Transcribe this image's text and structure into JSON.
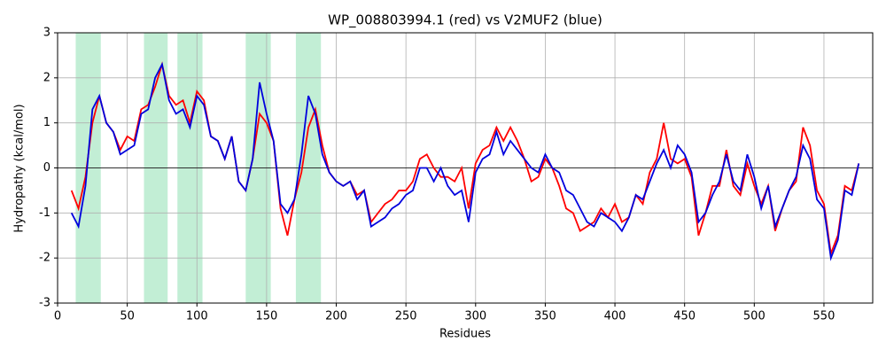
{
  "chart_data": {
    "type": "line",
    "title": "WP_008803994.1 (red) vs V2MUF2 (blue)",
    "x_label": "Residues",
    "y_label": "Hydropathy (kcal/mol)",
    "x": [
      10,
      15,
      20,
      25,
      30,
      35,
      40,
      45,
      50,
      55,
      60,
      65,
      70,
      75,
      80,
      85,
      90,
      95,
      100,
      105,
      110,
      115,
      120,
      125,
      130,
      135,
      140,
      145,
      150,
      155,
      160,
      165,
      170,
      175,
      180,
      185,
      190,
      195,
      200,
      205,
      210,
      215,
      220,
      225,
      230,
      235,
      240,
      245,
      250,
      255,
      260,
      265,
      270,
      275,
      280,
      285,
      290,
      295,
      300,
      305,
      310,
      315,
      320,
      325,
      330,
      335,
      340,
      345,
      350,
      355,
      360,
      365,
      370,
      375,
      380,
      385,
      390,
      395,
      400,
      405,
      410,
      415,
      420,
      425,
      430,
      435,
      440,
      445,
      450,
      455,
      460,
      465,
      470,
      475,
      480,
      485,
      490,
      495,
      500,
      505,
      510,
      515,
      520,
      525,
      530,
      535,
      540,
      545,
      550,
      555,
      560,
      565,
      570,
      575
    ],
    "series": [
      {
        "color": "#ff0000",
        "values": [
          -0.5,
          -0.9,
          -0.2,
          1.0,
          1.6,
          1.0,
          0.8,
          0.4,
          0.7,
          0.6,
          1.3,
          1.4,
          1.8,
          2.3,
          1.6,
          1.4,
          1.5,
          1.0,
          1.7,
          1.5,
          0.7,
          0.6,
          0.2,
          0.7,
          -0.3,
          -0.5,
          0.2,
          1.2,
          1.0,
          0.6,
          -0.9,
          -1.5,
          -0.7,
          -0.1,
          0.9,
          1.3,
          0.5,
          -0.1,
          -0.3,
          -0.4,
          -0.3,
          -0.6,
          -0.5,
          -1.2,
          -1.0,
          -0.8,
          -0.7,
          -0.5,
          -0.5,
          -0.3,
          0.2,
          0.3,
          0.0,
          -0.2,
          -0.2,
          -0.3,
          0.0,
          -0.9,
          0.1,
          0.4,
          0.5,
          0.9,
          0.6,
          0.9,
          0.6,
          0.2,
          -0.3,
          -0.2,
          0.2,
          0.0,
          -0.4,
          -0.9,
          -1.0,
          -1.4,
          -1.3,
          -1.2,
          -0.9,
          -1.1,
          -0.8,
          -1.2,
          -1.1,
          -0.6,
          -0.8,
          -0.1,
          0.2,
          1.0,
          0.2,
          0.1,
          0.2,
          -0.2,
          -1.5,
          -1.0,
          -0.4,
          -0.4,
          0.4,
          -0.4,
          -0.6,
          0.1,
          -0.4,
          -0.8,
          -0.4,
          -1.4,
          -0.9,
          -0.5,
          -0.3,
          0.9,
          0.5,
          -0.5,
          -0.8,
          -1.9,
          -1.5,
          -0.4,
          -0.5,
          0.1
        ]
      },
      {
        "color": "#0000dd",
        "values": [
          -1.0,
          -1.3,
          -0.4,
          1.3,
          1.6,
          1.0,
          0.8,
          0.3,
          0.4,
          0.5,
          1.2,
          1.3,
          2.0,
          2.3,
          1.5,
          1.2,
          1.3,
          0.9,
          1.6,
          1.4,
          0.7,
          0.6,
          0.2,
          0.7,
          -0.3,
          -0.5,
          0.2,
          1.9,
          1.2,
          0.6,
          -0.8,
          -1.0,
          -0.7,
          0.3,
          1.6,
          1.2,
          0.3,
          -0.1,
          -0.3,
          -0.4,
          -0.3,
          -0.7,
          -0.5,
          -1.3,
          -1.2,
          -1.1,
          -0.9,
          -0.8,
          -0.6,
          -0.5,
          0.0,
          0.0,
          -0.3,
          0.0,
          -0.4,
          -0.6,
          -0.5,
          -1.2,
          -0.1,
          0.2,
          0.3,
          0.8,
          0.3,
          0.6,
          0.4,
          0.2,
          0.0,
          -0.1,
          0.3,
          0.0,
          -0.1,
          -0.5,
          -0.6,
          -0.9,
          -1.2,
          -1.3,
          -1.0,
          -1.1,
          -1.2,
          -1.4,
          -1.1,
          -0.6,
          -0.7,
          -0.3,
          0.1,
          0.4,
          0.0,
          0.5,
          0.3,
          -0.1,
          -1.2,
          -1.0,
          -0.6,
          -0.3,
          0.3,
          -0.3,
          -0.5,
          0.3,
          -0.2,
          -0.9,
          -0.4,
          -1.3,
          -0.9,
          -0.5,
          -0.2,
          0.5,
          0.2,
          -0.7,
          -0.9,
          -2.0,
          -1.6,
          -0.5,
          -0.6,
          0.1
        ]
      }
    ],
    "highlights": [
      [
        13,
        31
      ],
      [
        62,
        79
      ],
      [
        86,
        104
      ],
      [
        135,
        153
      ],
      [
        171,
        189
      ]
    ],
    "highlight_color": "#c2eed5",
    "zero_line": 0,
    "xlim": [
      0,
      585
    ],
    "ylim": [
      -3,
      3
    ],
    "xticks": [
      0,
      50,
      100,
      150,
      200,
      250,
      300,
      350,
      400,
      450,
      500,
      550
    ],
    "yticks": [
      -3,
      -2,
      -1,
      0,
      1,
      2,
      3
    ],
    "grid": true
  }
}
